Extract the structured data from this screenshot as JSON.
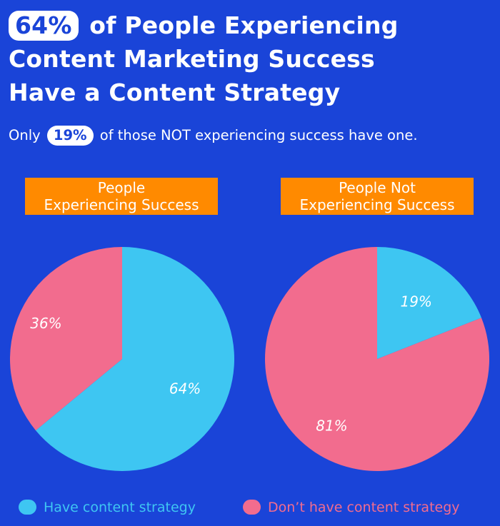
{
  "headline": {
    "pill": "64%",
    "line1_rest": "of People Experiencing",
    "line2": "Content Marketing Success",
    "line3": "Have a Content Strategy"
  },
  "subhead": {
    "before": "Only",
    "pill": "19%",
    "after": "of those NOT experiencing success have one."
  },
  "legend": {
    "have": "Have content strategy",
    "dont": "Don’t have content strategy"
  },
  "colors": {
    "background": "#1a44d8",
    "have": "#3ec6f2",
    "dont": "#f26c8e",
    "title_box": "#ff8a00"
  },
  "chart_data": [
    {
      "type": "pie",
      "title_lines": [
        "People",
        "Experiencing Success"
      ],
      "slices": [
        {
          "name": "Have content strategy",
          "value": 64,
          "label": "64%"
        },
        {
          "name": "Don’t have content strategy",
          "value": 36,
          "label": "36%"
        }
      ]
    },
    {
      "type": "pie",
      "title_lines": [
        "People Not",
        "Experiencing Success"
      ],
      "slices": [
        {
          "name": "Have content strategy",
          "value": 19,
          "label": "19%"
        },
        {
          "name": "Don’t have content strategy",
          "value": 81,
          "label": "81%"
        }
      ]
    }
  ]
}
